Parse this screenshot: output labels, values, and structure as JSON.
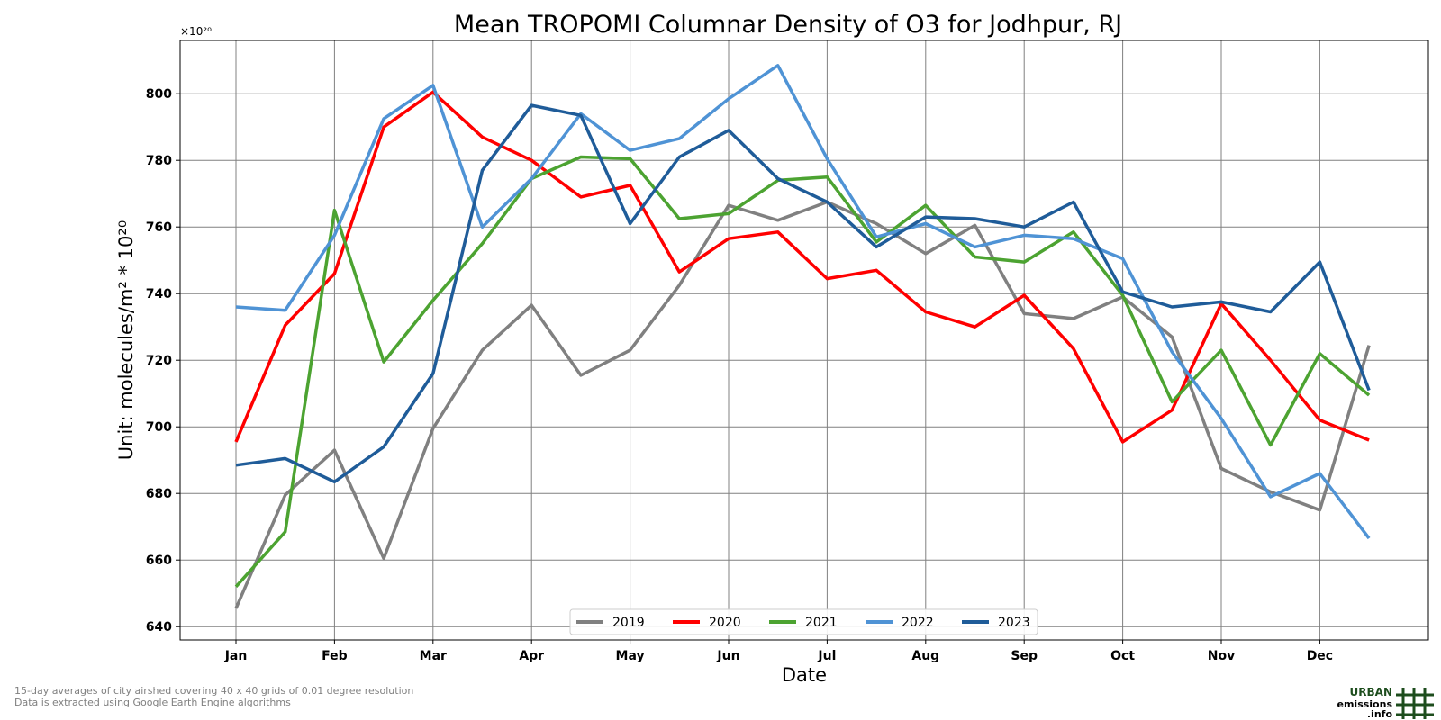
{
  "chart_data": {
    "type": "line",
    "title": "Mean TROPOMI Columnar Density of O3 for Jodhpur, RJ",
    "xlabel": "Date",
    "ylabel": "Unit: molecules/m² * 10²⁰",
    "y_multiplier_label": "×10²⁰",
    "ylim": [
      636,
      816
    ],
    "yticks": [
      640,
      660,
      680,
      700,
      720,
      740,
      760,
      780,
      800
    ],
    "x_tick_labels": [
      "Jan",
      "Feb",
      "Mar",
      "Apr",
      "May",
      "Jun",
      "Jul",
      "Aug",
      "Sep",
      "Oct",
      "Nov",
      "Dec"
    ],
    "x_points_per_month": 2,
    "grid": true,
    "legend_position": "bottom-center",
    "series": [
      {
        "name": "2019",
        "color": "#808080",
        "values": [
          645.5,
          679.5,
          693,
          660.5,
          699.5,
          723,
          736.5,
          715.5,
          723,
          742.5,
          766.5,
          762,
          767.5,
          761,
          752,
          760.5,
          734,
          732.5,
          739,
          727,
          687.5,
          680.5,
          675,
          724.5
        ]
      },
      {
        "name": "2020",
        "color": "#ff0000",
        "values": [
          695.5,
          730.5,
          746,
          790,
          800.5,
          787,
          780,
          769,
          772.5,
          746.5,
          756.5,
          758.5,
          744.5,
          747,
          734.5,
          730,
          739.5,
          723.5,
          695.5,
          705,
          737,
          720,
          702,
          696
        ]
      },
      {
        "name": "2021",
        "color": "#4ca331",
        "values": [
          652,
          668.5,
          765,
          719.5,
          738,
          755,
          774.5,
          781,
          780.5,
          762.5,
          764,
          774,
          775,
          755.5,
          766.5,
          751,
          749.5,
          758.5,
          739.5,
          707.5,
          723,
          694.5,
          722,
          709.5
        ]
      },
      {
        "name": "2022",
        "color": "#4f93d5",
        "values": [
          736,
          735,
          757.5,
          792.5,
          802.5,
          760,
          774.5,
          794,
          783,
          786.5,
          798.5,
          808.5,
          780.5,
          757,
          761,
          754,
          757.5,
          756.5,
          750.5,
          722.5,
          702.5,
          679,
          686,
          666.5
        ]
      },
      {
        "name": "2023",
        "color": "#1f5c99",
        "values": [
          688.5,
          690.5,
          683.5,
          694,
          716,
          777,
          796.5,
          793.5,
          761,
          781,
          789,
          774.5,
          767.5,
          754,
          763,
          762.5,
          760,
          767.5,
          740.5,
          736,
          737.5,
          734.5,
          749.5,
          711
        ]
      }
    ]
  },
  "footnote": {
    "line1": "15-day averages of city airshed covering 40 x 40 grids of 0.01 degree resolution",
    "line2": "Data is extracted using Google Earth Engine algorithms"
  },
  "logo": {
    "line1": "URBAN",
    "line2": "emissions",
    "line3": ".info"
  }
}
